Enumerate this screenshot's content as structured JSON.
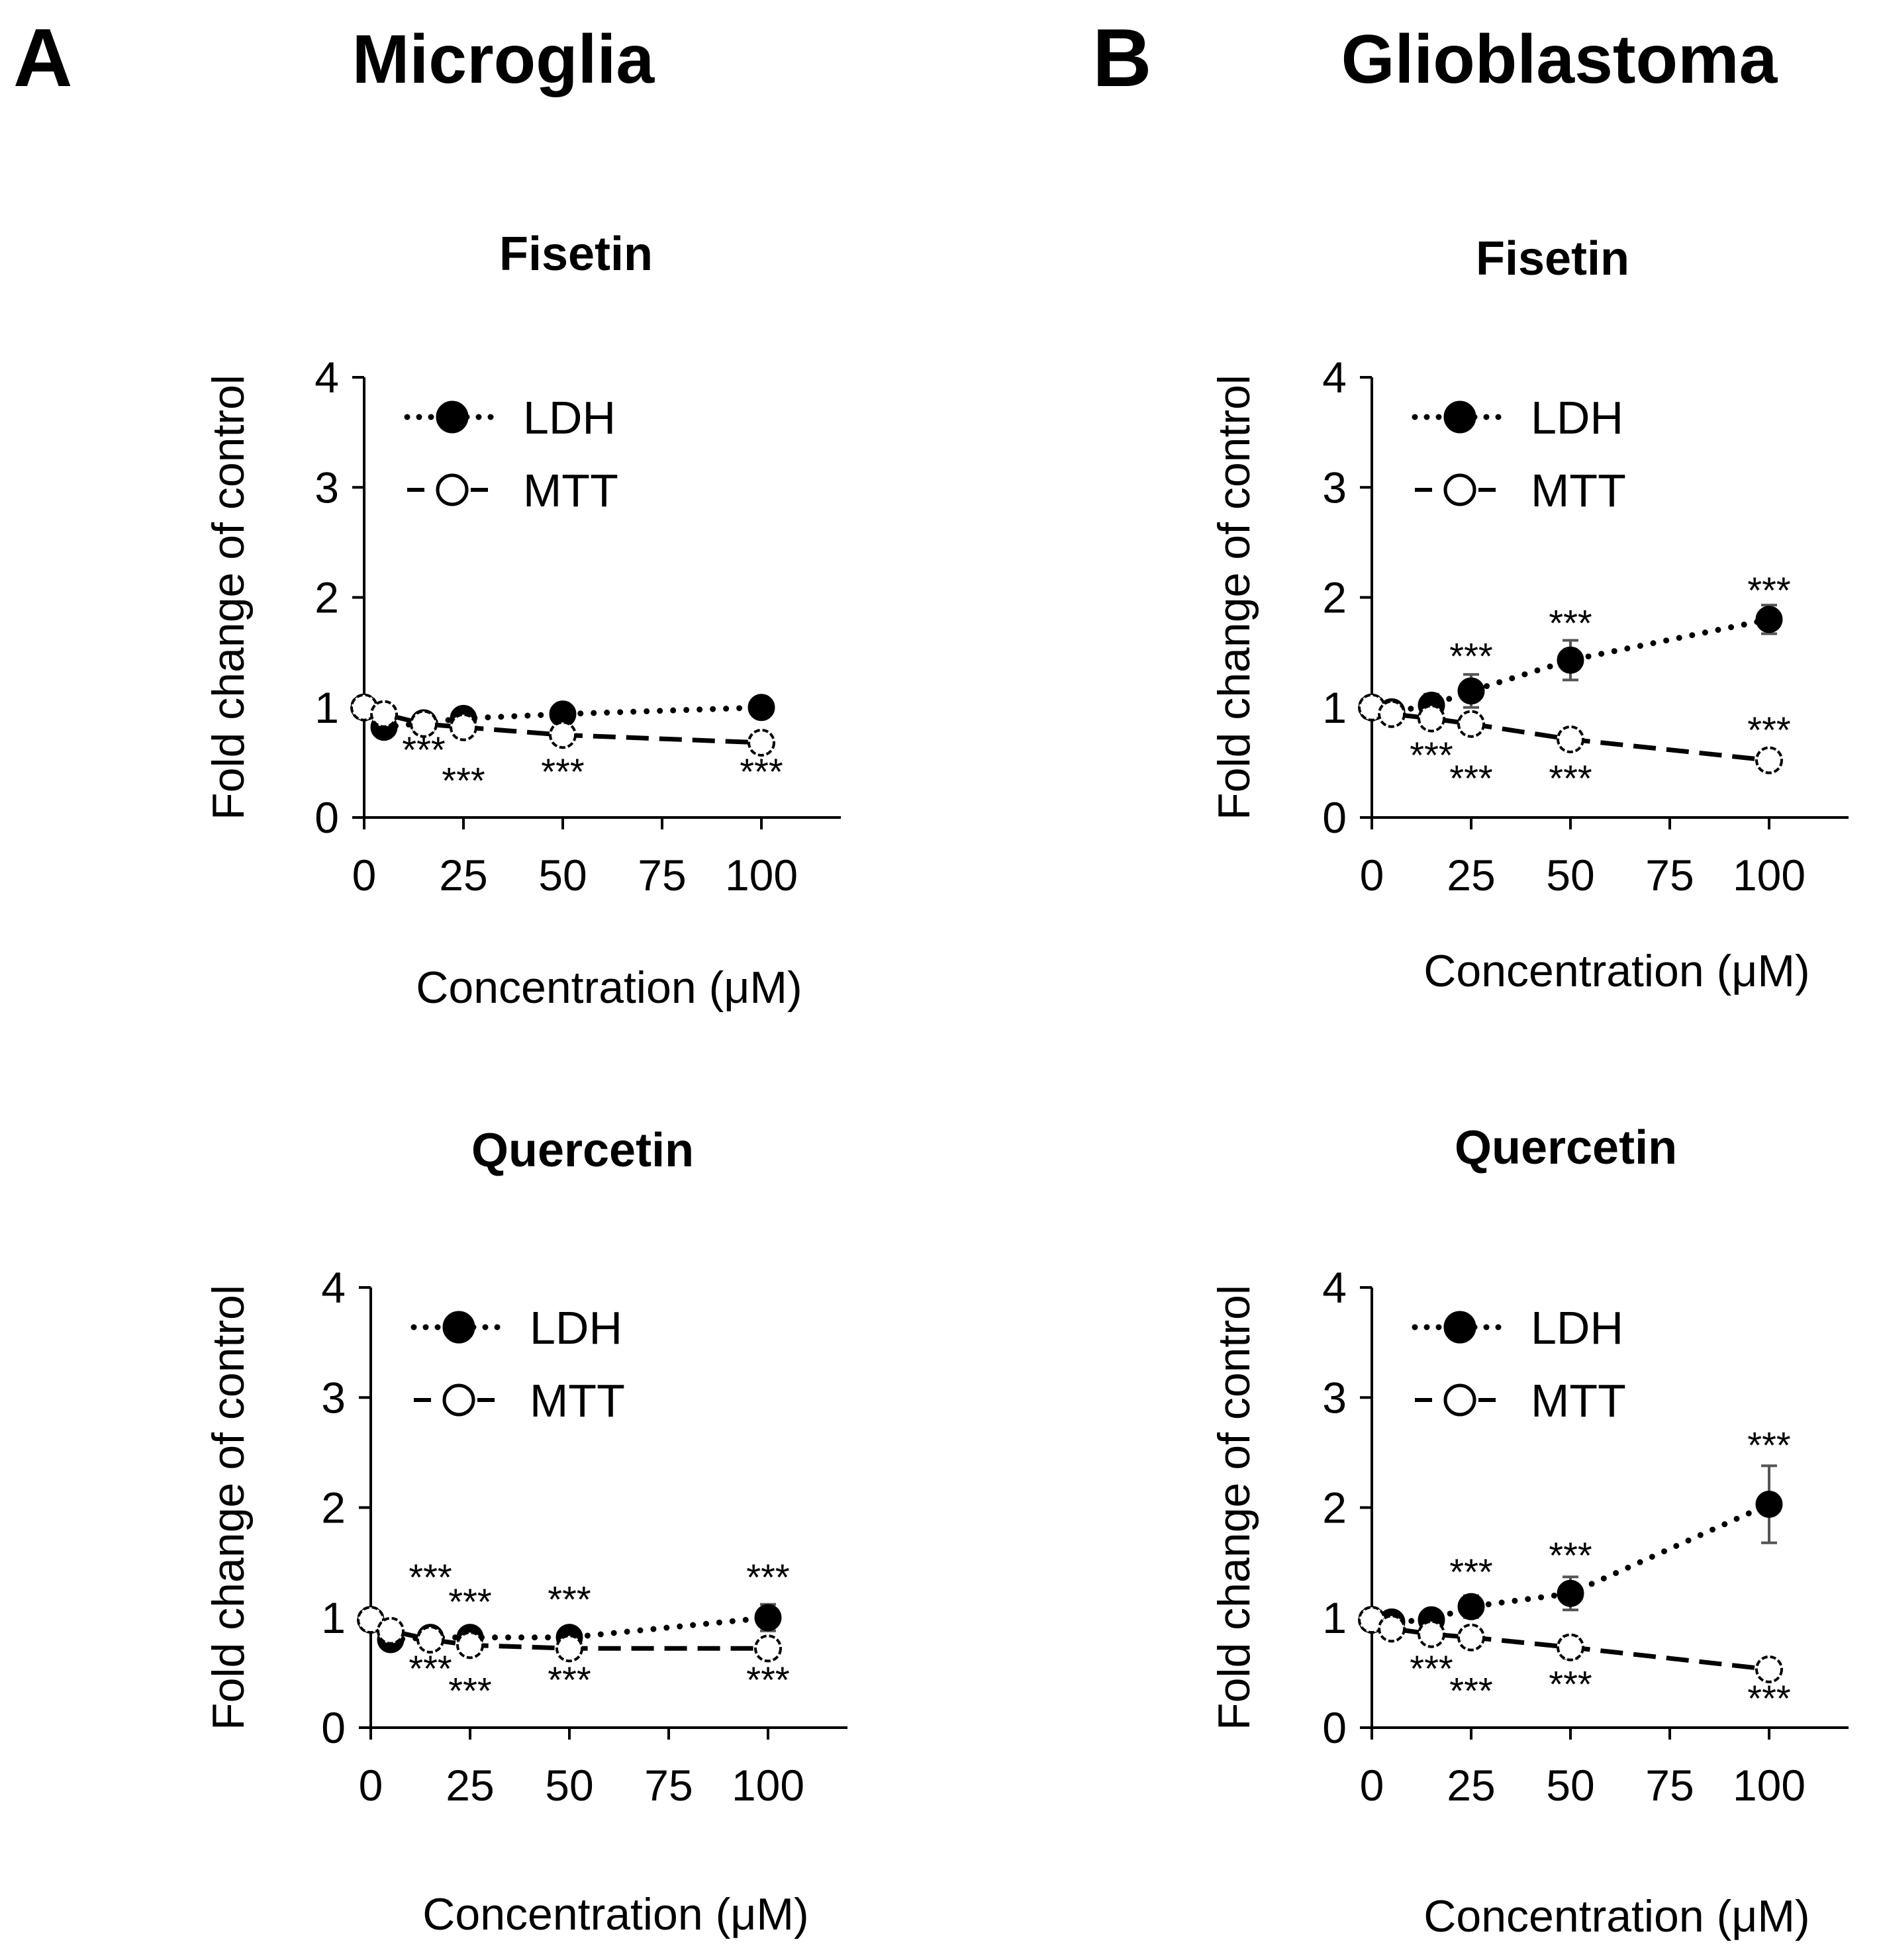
{
  "figure": {
    "panels": [
      {
        "letter": "A",
        "title": "Microglia"
      },
      {
        "letter": "B",
        "title": "Glioblastoma"
      }
    ]
  },
  "chart_data": [
    {
      "panel": "A",
      "type": "line",
      "title": "Fisetin",
      "xlabel": "Concentration (μM)",
      "ylabel": "Fold change of control",
      "xlim": [
        0,
        120
      ],
      "ylim": [
        0,
        4
      ],
      "xticks": [
        0,
        25,
        50,
        75,
        100
      ],
      "yticks": [
        0,
        1,
        2,
        3,
        4
      ],
      "legend": "top-left",
      "series": [
        {
          "name": "LDH",
          "marker": "filled",
          "line": "dotted",
          "x": [
            0,
            5,
            15,
            25,
            50,
            100
          ],
          "y": [
            1.0,
            0.82,
            0.86,
            0.9,
            0.94,
            1.0
          ],
          "err": [
            0.03,
            0.05,
            0.06,
            0.07,
            0.05,
            0.05
          ]
        },
        {
          "name": "MTT",
          "marker": "open",
          "line": "dashed",
          "x": [
            0,
            5,
            15,
            25,
            50,
            100
          ],
          "y": [
            1.0,
            0.94,
            0.85,
            0.82,
            0.75,
            0.68
          ],
          "err": [
            0.02,
            0.03,
            0.04,
            0.04,
            0.04,
            0.03
          ]
        }
      ],
      "annotations": [
        {
          "text": "***",
          "x": 15,
          "y": 0.5
        },
        {
          "text": "***",
          "x": 25,
          "y": 0.22
        },
        {
          "text": "***",
          "x": 50,
          "y": 0.3
        },
        {
          "text": "***",
          "x": 100,
          "y": 0.3
        }
      ]
    },
    {
      "panel": "B",
      "type": "line",
      "title": "Fisetin",
      "xlabel": "Concentration (μM)",
      "ylabel": "Fold change of control",
      "xlim": [
        0,
        120
      ],
      "ylim": [
        0,
        4
      ],
      "xticks": [
        0,
        25,
        50,
        75,
        100
      ],
      "yticks": [
        0,
        1,
        2,
        3,
        4
      ],
      "legend": "top-left",
      "series": [
        {
          "name": "LDH",
          "marker": "filled",
          "line": "dotted",
          "x": [
            0,
            5,
            15,
            25,
            50,
            100
          ],
          "y": [
            1.0,
            0.96,
            1.02,
            1.15,
            1.43,
            1.8
          ],
          "err": [
            0.03,
            0.04,
            0.1,
            0.15,
            0.18,
            0.13
          ]
        },
        {
          "name": "MTT",
          "marker": "open",
          "line": "dashed",
          "x": [
            0,
            5,
            15,
            25,
            50,
            100
          ],
          "y": [
            1.0,
            0.94,
            0.9,
            0.85,
            0.71,
            0.52
          ],
          "err": [
            0.02,
            0.03,
            0.04,
            0.04,
            0.04,
            0.03
          ]
        }
      ],
      "annotations": [
        {
          "text": "***",
          "x": 25,
          "y": 1.35
        },
        {
          "text": "***",
          "x": 50,
          "y": 1.65
        },
        {
          "text": "***",
          "x": 100,
          "y": 1.95
        },
        {
          "text": "***",
          "x": 15,
          "y": 0.45
        },
        {
          "text": "***",
          "x": 25,
          "y": 0.24
        },
        {
          "text": "***",
          "x": 50,
          "y": 0.24
        },
        {
          "text": "***",
          "x": 100,
          "y": 0.68
        }
      ]
    },
    {
      "panel": "A",
      "type": "line",
      "title": "Quercetin",
      "xlabel": "Concentration (μM)",
      "ylabel": "Fold change of control",
      "xlim": [
        0,
        120
      ],
      "ylim": [
        0,
        4
      ],
      "xticks": [
        0,
        25,
        50,
        75,
        100
      ],
      "yticks": [
        0,
        1,
        2,
        3,
        4
      ],
      "legend": "top-left",
      "series": [
        {
          "name": "LDH",
          "marker": "filled",
          "line": "dotted",
          "x": [
            0,
            5,
            15,
            25,
            50,
            100
          ],
          "y": [
            0.98,
            0.8,
            0.82,
            0.82,
            0.82,
            1.0
          ],
          "err": [
            0.03,
            0.05,
            0.06,
            0.06,
            0.05,
            0.12
          ]
        },
        {
          "name": "MTT",
          "marker": "open",
          "line": "dashed",
          "x": [
            0,
            5,
            15,
            25,
            50,
            100
          ],
          "y": [
            0.98,
            0.88,
            0.8,
            0.75,
            0.72,
            0.72
          ],
          "err": [
            0.02,
            0.03,
            0.03,
            0.06,
            0.04,
            0.04
          ]
        }
      ],
      "annotations": [
        {
          "text": "***",
          "x": 15,
          "y": 1.25
        },
        {
          "text": "***",
          "x": 25,
          "y": 1.03
        },
        {
          "text": "***",
          "x": 50,
          "y": 1.05
        },
        {
          "text": "***",
          "x": 100,
          "y": 1.25
        },
        {
          "text": "***",
          "x": 15,
          "y": 0.42
        },
        {
          "text": "***",
          "x": 25,
          "y": 0.22
        },
        {
          "text": "***",
          "x": 50,
          "y": 0.32
        },
        {
          "text": "***",
          "x": 100,
          "y": 0.32
        }
      ]
    },
    {
      "panel": "B",
      "type": "line",
      "title": "Quercetin",
      "xlabel": "Concentration (μM)",
      "ylabel": "Fold change of control",
      "xlim": [
        0,
        120
      ],
      "ylim": [
        0,
        4
      ],
      "xticks": [
        0,
        25,
        50,
        75,
        100
      ],
      "yticks": [
        0,
        1,
        2,
        3,
        4
      ],
      "legend": "top-left",
      "series": [
        {
          "name": "LDH",
          "marker": "filled",
          "line": "dotted",
          "x": [
            0,
            5,
            15,
            25,
            50,
            100
          ],
          "y": [
            0.98,
            0.96,
            0.98,
            1.1,
            1.22,
            2.03
          ],
          "err": [
            0.03,
            0.04,
            0.05,
            0.1,
            0.15,
            0.35
          ]
        },
        {
          "name": "MTT",
          "marker": "open",
          "line": "dashed",
          "x": [
            0,
            5,
            15,
            25,
            50,
            100
          ],
          "y": [
            0.98,
            0.9,
            0.85,
            0.82,
            0.73,
            0.53
          ],
          "err": [
            0.02,
            0.03,
            0.04,
            0.05,
            0.1,
            0.03
          ]
        }
      ],
      "annotations": [
        {
          "text": "***",
          "x": 25,
          "y": 1.3
        },
        {
          "text": "***",
          "x": 50,
          "y": 1.45
        },
        {
          "text": "***",
          "x": 100,
          "y": 2.45
        },
        {
          "text": "***",
          "x": 15,
          "y": 0.42
        },
        {
          "text": "***",
          "x": 25,
          "y": 0.22
        },
        {
          "text": "***",
          "x": 50,
          "y": 0.28
        },
        {
          "text": "***",
          "x": 100,
          "y": 0.15
        }
      ]
    }
  ]
}
